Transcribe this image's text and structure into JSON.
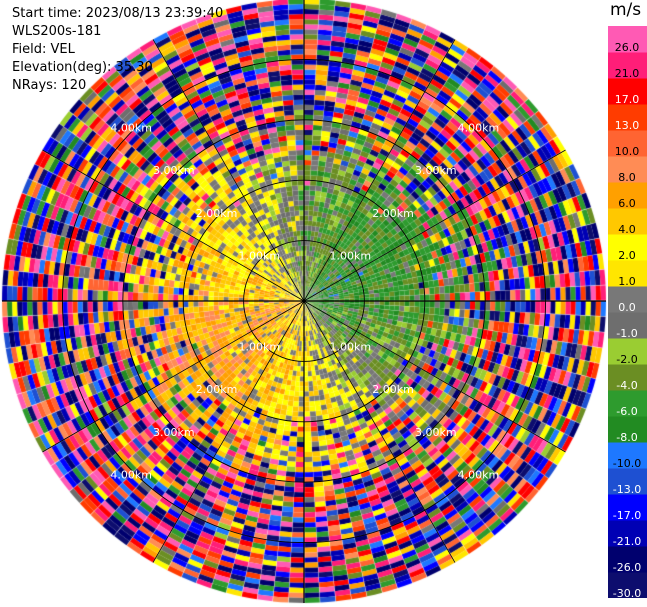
{
  "header": {
    "start_time": "Start time: 2023/08/13 23:39:40",
    "instrument": "WLS200s-181",
    "field": "Field: VEL",
    "elevation": "Elevation(deg): 35.30",
    "nrays": "NRays: 120"
  },
  "chart_data": {
    "type": "heatmap",
    "projection": "polar PPI",
    "field": "VEL",
    "unit": "m/s",
    "n_rays": 120,
    "range_km_max": 5.0,
    "range_rings_km": [
      1,
      2,
      3,
      4
    ],
    "range_ring_labels": [
      "1.00km",
      "2.00km",
      "3.00km",
      "4.00km"
    ],
    "colorbar": {
      "unit_label": "m/s",
      "bounds": [
        -30.0,
        -26.0,
        -21.0,
        -17.0,
        -13.0,
        -10.0,
        -8.0,
        -6.0,
        -4.0,
        -2.0,
        -1.0,
        0.0,
        1.0,
        2.0,
        4.0,
        6.0,
        8.0,
        10.0,
        13.0,
        17.0,
        21.0,
        26.0,
        30.0
      ],
      "tick_labels": [
        "-30.0",
        "-26.0",
        "-21.0",
        "-17.0",
        "-13.0",
        "-10.0",
        "-8.0",
        "-6.0",
        "-4.0",
        "-2.0",
        "-1.0",
        "0.0",
        "1.0",
        "2.0",
        "4.0",
        "6.0",
        "8.0",
        "10.0",
        "13.0",
        "17.0",
        "21.0",
        "26.0"
      ],
      "colors": [
        "#0d0d6e",
        "#00006e",
        "#0000b4",
        "#0000ff",
        "#1e50d2",
        "#1e78ff",
        "#228b22",
        "#2e9b2e",
        "#6b8e23",
        "#9acd32",
        "#6e6e6e",
        "#787878",
        "#ffe600",
        "#ffff00",
        "#ffc800",
        "#ffa000",
        "#ff8c55",
        "#ff6432",
        "#ff3c00",
        "#ff0000",
        "#ff1e78",
        "#ff5ab4"
      ]
    }
  }
}
